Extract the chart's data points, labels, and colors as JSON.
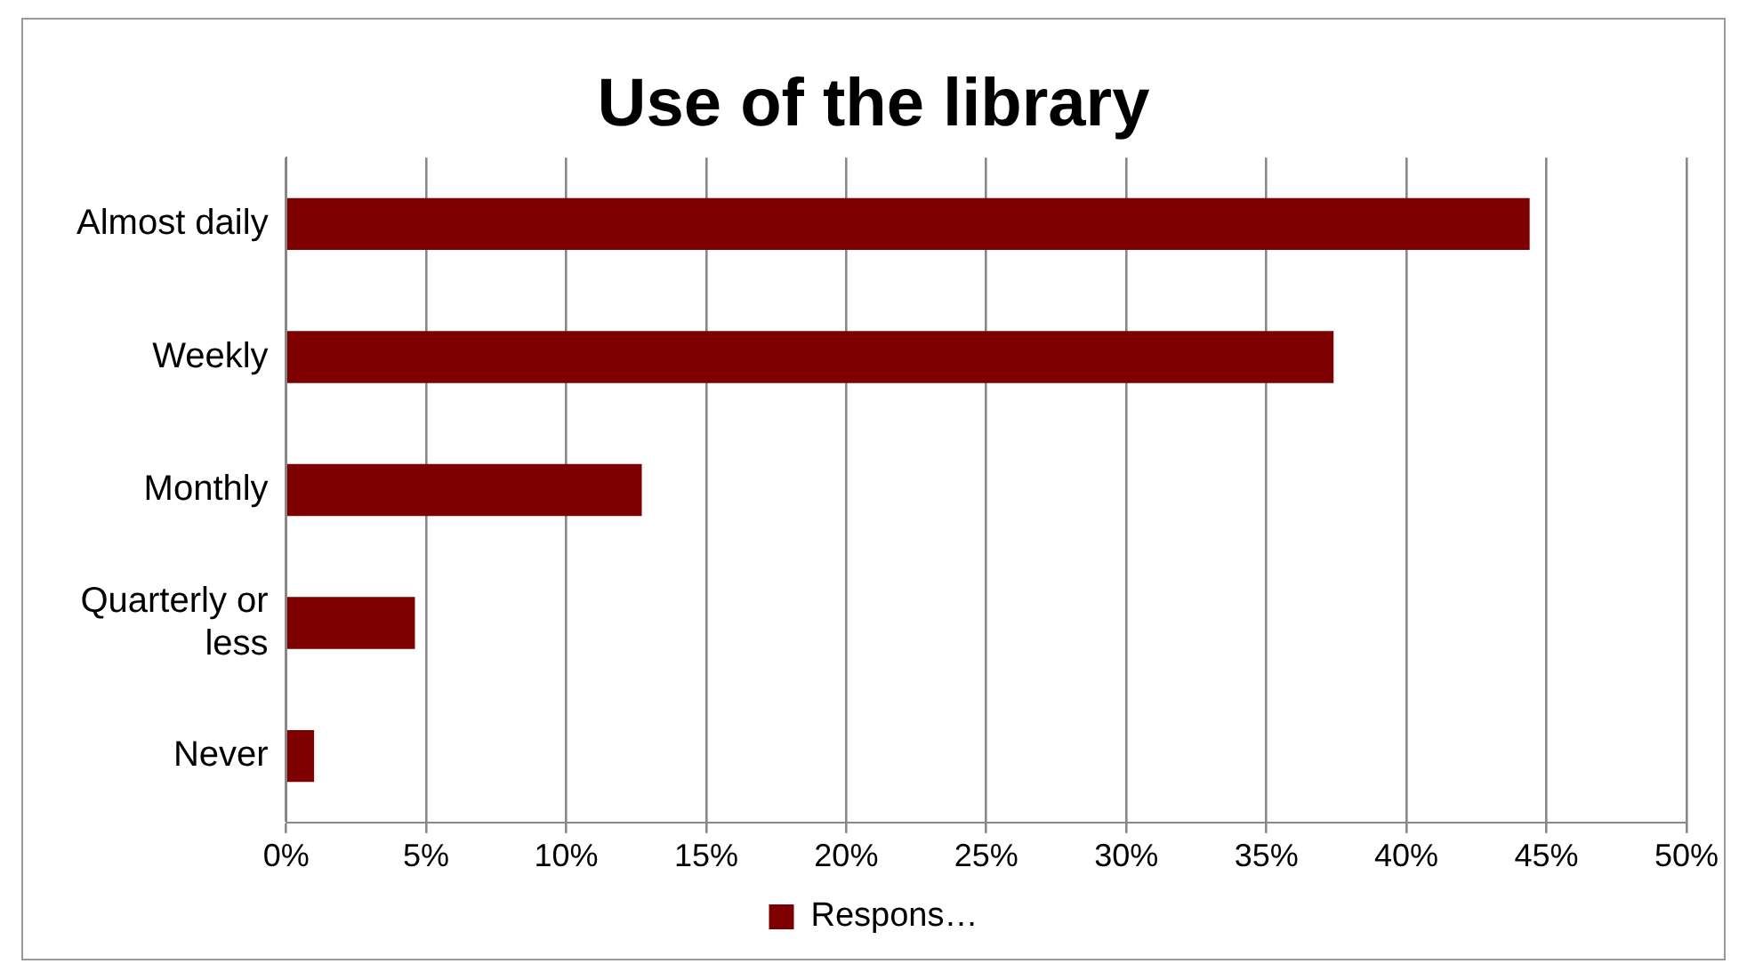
{
  "chart_data": {
    "type": "bar",
    "orientation": "horizontal",
    "title": "Use of the library",
    "categories": [
      "Almost daily",
      "Weekly",
      "Monthly",
      "Quarterly or less",
      "Never"
    ],
    "series": [
      {
        "name": "Respons…",
        "color": "#7f0000",
        "values": [
          44.4,
          37.4,
          12.7,
          4.6,
          1.0
        ]
      }
    ],
    "xlim": [
      0,
      50
    ],
    "xticks": [
      {
        "value": 0,
        "label": "0%"
      },
      {
        "value": 5,
        "label": "5%"
      },
      {
        "value": 10,
        "label": "10%"
      },
      {
        "value": 15,
        "label": "15%"
      },
      {
        "value": 20,
        "label": "20%"
      },
      {
        "value": 25,
        "label": "25%"
      },
      {
        "value": 30,
        "label": "30%"
      },
      {
        "value": 35,
        "label": "35%"
      },
      {
        "value": 40,
        "label": "40%"
      },
      {
        "value": 45,
        "label": "45%"
      },
      {
        "value": 50,
        "label": "50%"
      }
    ],
    "grid": "x",
    "legend": "bottom"
  }
}
